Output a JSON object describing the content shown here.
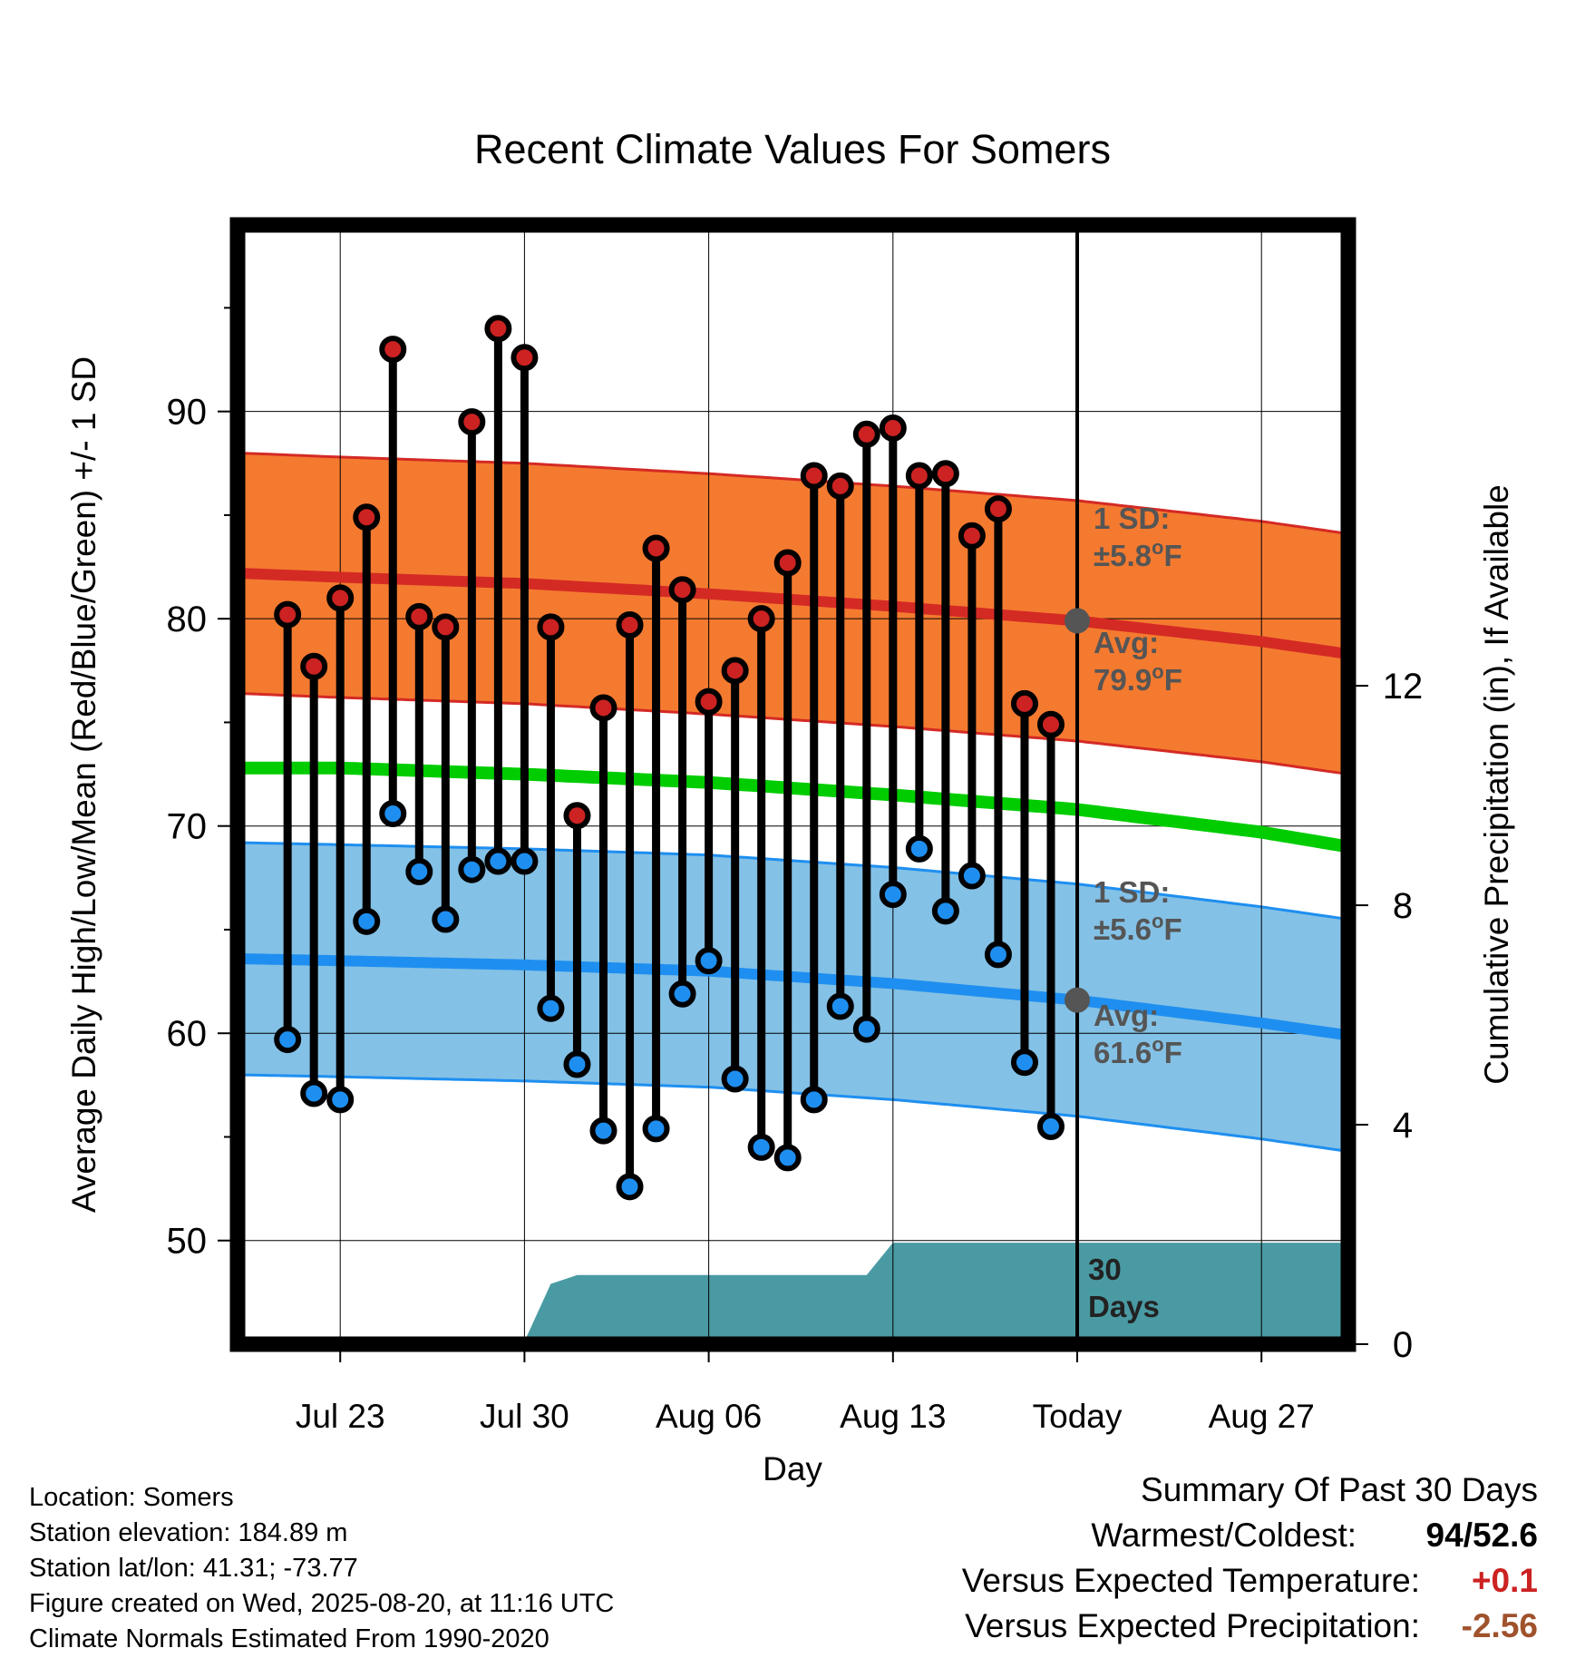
{
  "chart_data": {
    "type": "line",
    "title": "Recent Climate Values For Somers",
    "xlabel": "Day",
    "ylabel": "Average Daily High/Low/Mean (Red/Blue/Green) +/- 1 SD",
    "y2label": "Cumulative Precipitation (in), If Available",
    "ylim": [
      45,
      99
    ],
    "y2lim": [
      0,
      20.4
    ],
    "yticks": [
      50,
      60,
      70,
      80,
      90
    ],
    "y2ticks": [
      0,
      4,
      8,
      12
    ],
    "x_ticks": [
      {
        "day": 3,
        "label": "Jul 23"
      },
      {
        "day": 10,
        "label": "Jul 30"
      },
      {
        "day": 17,
        "label": "Aug 06"
      },
      {
        "day": 24,
        "label": "Aug 13"
      },
      {
        "day": 31,
        "label": "Today"
      },
      {
        "day": 38,
        "label": "Aug 27"
      }
    ],
    "xlim": [
      -0.9,
      41.3
    ],
    "today_day": 31,
    "first_date": "Jul 20",
    "days": [
      "Jul 21",
      "Jul 22",
      "Jul 23",
      "Jul 24",
      "Jul 25",
      "Jul 26",
      "Jul 27",
      "Jul 28",
      "Jul 29",
      "Jul 30",
      "Jul 31",
      "Aug 01",
      "Aug 02",
      "Aug 03",
      "Aug 04",
      "Aug 05",
      "Aug 06",
      "Aug 07",
      "Aug 08",
      "Aug 09",
      "Aug 10",
      "Aug 11",
      "Aug 12",
      "Aug 13",
      "Aug 14",
      "Aug 15",
      "Aug 16",
      "Aug 17",
      "Aug 18",
      "Aug 19"
    ],
    "highs": [
      80.2,
      77.7,
      81.0,
      84.9,
      93.0,
      80.1,
      79.6,
      89.5,
      94.0,
      92.6,
      79.6,
      70.5,
      75.7,
      79.7,
      83.4,
      81.4,
      76.0,
      77.5,
      80.0,
      82.7,
      86.9,
      86.4,
      88.9,
      89.2,
      86.9,
      87.0,
      84.0,
      85.3,
      75.9,
      74.9
    ],
    "lows": [
      59.7,
      57.1,
      56.8,
      65.4,
      70.6,
      67.8,
      65.5,
      67.9,
      68.3,
      68.3,
      61.2,
      58.5,
      55.3,
      52.6,
      55.4,
      61.9,
      63.5,
      57.8,
      54.5,
      54.0,
      56.8,
      61.3,
      60.2,
      66.7,
      68.9,
      65.9,
      67.6,
      63.8,
      58.6,
      55.5
    ],
    "normals": {
      "days": [
        -0.9,
        3,
        10,
        17,
        24,
        31,
        38,
        41.3
      ],
      "high_mean": [
        82.2,
        82.0,
        81.7,
        81.2,
        80.6,
        79.9,
        78.9,
        78.3
      ],
      "high_sd": 5.8,
      "low_mean": [
        63.6,
        63.5,
        63.3,
        63.0,
        62.4,
        61.6,
        60.5,
        59.9
      ],
      "low_sd": 5.6,
      "mean": [
        72.8,
        72.8,
        72.5,
        72.1,
        71.5,
        70.8,
        69.7,
        69.0
      ]
    },
    "precip": {
      "days": [
        -0.9,
        6,
        7.2,
        10,
        11,
        12,
        23,
        24,
        41.3
      ],
      "values": [
        0,
        0,
        0.05,
        0.05,
        1.1,
        1.26,
        1.26,
        1.85,
        1.85
      ]
    },
    "annotations": {
      "high_sd": [
        "1 SD:",
        "±5.8°F"
      ],
      "high_avg": [
        "Avg:",
        "79.9°F"
      ],
      "low_sd": [
        "1 SD:",
        "±5.6°F"
      ],
      "low_avg": [
        "Avg:",
        "61.6°F"
      ],
      "precip_period": [
        "30",
        "Days"
      ]
    },
    "colors": {
      "high_band": "#f47a30",
      "high_line": "#d42a24",
      "low_band": "#84c1e6",
      "low_line": "#1e8ff0",
      "mean_line": "#00cc00",
      "precip": "#4a9aa3",
      "high_marker": "#cc2222",
      "low_marker": "#1e8ff0",
      "annotation": "#555555"
    }
  },
  "info": {
    "location": "Location: Somers",
    "elevation": "Station elevation: 184.89 m",
    "latlon": "Station lat/lon: 41.31; -73.77",
    "created": "Figure created on Wed, 2025-08-20, at 11:16 UTC",
    "normals": "Climate Normals Estimated From 1990-2020"
  },
  "summary": {
    "title": "Summary Of Past 30 Days",
    "warmest_label": "Warmest/Coldest:",
    "warmest_value": "94",
    "coldest_value": "52.6",
    "temp_label": "Versus Expected Temperature:",
    "temp_value": "+0.1",
    "precip_label": "Versus Expected Precipitation:",
    "precip_value": "-2.56",
    "temp_color": "#cc2222",
    "precip_color": "#a0522d"
  }
}
